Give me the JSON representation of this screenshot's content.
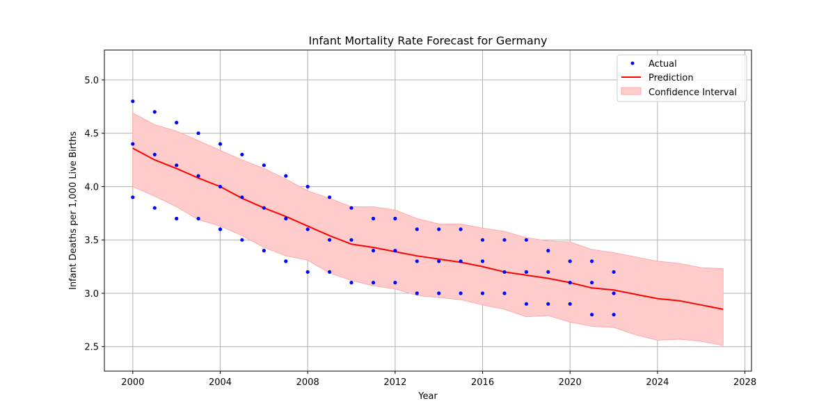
{
  "chart_data": {
    "type": "line",
    "title": "Infant Mortality Rate Forecast for Germany",
    "xlabel": "Year",
    "ylabel": "Infant Deaths per 1,000 Live Births",
    "xlim": [
      1998.7,
      2028.3
    ],
    "ylim": [
      2.27,
      5.28
    ],
    "x_ticks": [
      2000,
      2004,
      2008,
      2012,
      2016,
      2020,
      2024,
      2028
    ],
    "y_ticks": [
      2.5,
      3.0,
      3.5,
      4.0,
      4.5,
      5.0
    ],
    "grid": true,
    "legend_position": "top-right",
    "colors": {
      "actual": "#0000ff",
      "prediction": "#ff0000",
      "interval": "#ffcccc",
      "interval_edge": "#ffaaaa",
      "grid": "#b0b0b0"
    },
    "legend": [
      {
        "label": "Actual",
        "kind": "dot"
      },
      {
        "label": "Prediction",
        "kind": "line"
      },
      {
        "label": "Confidence Interval",
        "kind": "patch"
      }
    ],
    "series": [
      {
        "name": "Actual",
        "kind": "scatter",
        "points": [
          [
            2000,
            4.8
          ],
          [
            2000,
            4.4
          ],
          [
            2000,
            3.9
          ],
          [
            2001,
            4.7
          ],
          [
            2001,
            4.3
          ],
          [
            2001,
            3.8
          ],
          [
            2002,
            4.6
          ],
          [
            2002,
            4.2
          ],
          [
            2002,
            3.7
          ],
          [
            2003,
            4.5
          ],
          [
            2003,
            4.1
          ],
          [
            2003,
            3.7
          ],
          [
            2004,
            4.4
          ],
          [
            2004,
            4.0
          ],
          [
            2004,
            3.6
          ],
          [
            2005,
            4.3
          ],
          [
            2005,
            3.9
          ],
          [
            2005,
            3.5
          ],
          [
            2006,
            4.2
          ],
          [
            2006,
            3.8
          ],
          [
            2006,
            3.4
          ],
          [
            2007,
            4.1
          ],
          [
            2007,
            3.7
          ],
          [
            2007,
            3.3
          ],
          [
            2008,
            4.0
          ],
          [
            2008,
            3.6
          ],
          [
            2008,
            3.2
          ],
          [
            2009,
            3.9
          ],
          [
            2009,
            3.5
          ],
          [
            2009,
            3.2
          ],
          [
            2010,
            3.8
          ],
          [
            2010,
            3.5
          ],
          [
            2010,
            3.1
          ],
          [
            2011,
            3.7
          ],
          [
            2011,
            3.4
          ],
          [
            2011,
            3.1
          ],
          [
            2012,
            3.7
          ],
          [
            2012,
            3.4
          ],
          [
            2012,
            3.1
          ],
          [
            2013,
            3.6
          ],
          [
            2013,
            3.3
          ],
          [
            2013,
            3.0
          ],
          [
            2014,
            3.6
          ],
          [
            2014,
            3.3
          ],
          [
            2014,
            3.0
          ],
          [
            2015,
            3.6
          ],
          [
            2015,
            3.3
          ],
          [
            2015,
            3.0
          ],
          [
            2016,
            3.5
          ],
          [
            2016,
            3.3
          ],
          [
            2016,
            3.0
          ],
          [
            2017,
            3.5
          ],
          [
            2017,
            3.2
          ],
          [
            2017,
            3.0
          ],
          [
            2018,
            3.5
          ],
          [
            2018,
            3.2
          ],
          [
            2018,
            2.9
          ],
          [
            2019,
            3.4
          ],
          [
            2019,
            3.2
          ],
          [
            2019,
            2.9
          ],
          [
            2020,
            3.3
          ],
          [
            2020,
            3.1
          ],
          [
            2020,
            2.9
          ],
          [
            2021,
            3.3
          ],
          [
            2021,
            3.1
          ],
          [
            2021,
            2.8
          ],
          [
            2022,
            3.2
          ],
          [
            2022,
            3.0
          ],
          [
            2022,
            2.8
          ]
        ]
      },
      {
        "name": "Prediction",
        "kind": "line",
        "x": [
          2000,
          2001,
          2002,
          2003,
          2004,
          2005,
          2006,
          2007,
          2008,
          2009,
          2010,
          2011,
          2012,
          2013,
          2014,
          2015,
          2016,
          2017,
          2018,
          2019,
          2020,
          2021,
          2022,
          2023,
          2024,
          2025,
          2026,
          2027
        ],
        "y": [
          4.36,
          4.25,
          4.17,
          4.08,
          4.0,
          3.89,
          3.8,
          3.72,
          3.63,
          3.54,
          3.46,
          3.43,
          3.39,
          3.35,
          3.32,
          3.29,
          3.25,
          3.2,
          3.17,
          3.14,
          3.1,
          3.05,
          3.03,
          2.99,
          2.95,
          2.93,
          2.89,
          2.85
        ]
      },
      {
        "name": "Confidence Interval",
        "kind": "band",
        "x": [
          2000,
          2001,
          2002,
          2003,
          2004,
          2005,
          2006,
          2007,
          2008,
          2009,
          2010,
          2011,
          2012,
          2013,
          2014,
          2015,
          2016,
          2017,
          2018,
          2019,
          2020,
          2021,
          2022,
          2023,
          2024,
          2025,
          2026,
          2027
        ],
        "upper": [
          4.69,
          4.58,
          4.52,
          4.43,
          4.34,
          4.25,
          4.17,
          4.07,
          3.96,
          3.89,
          3.81,
          3.81,
          3.78,
          3.7,
          3.65,
          3.65,
          3.61,
          3.58,
          3.52,
          3.49,
          3.48,
          3.41,
          3.38,
          3.34,
          3.3,
          3.28,
          3.24,
          3.23
        ],
        "lower": [
          4.0,
          3.91,
          3.81,
          3.69,
          3.63,
          3.54,
          3.43,
          3.35,
          3.31,
          3.19,
          3.12,
          3.07,
          3.04,
          2.98,
          2.96,
          2.94,
          2.89,
          2.85,
          2.78,
          2.79,
          2.73,
          2.69,
          2.68,
          2.61,
          2.56,
          2.57,
          2.55,
          2.51
        ]
      }
    ]
  }
}
